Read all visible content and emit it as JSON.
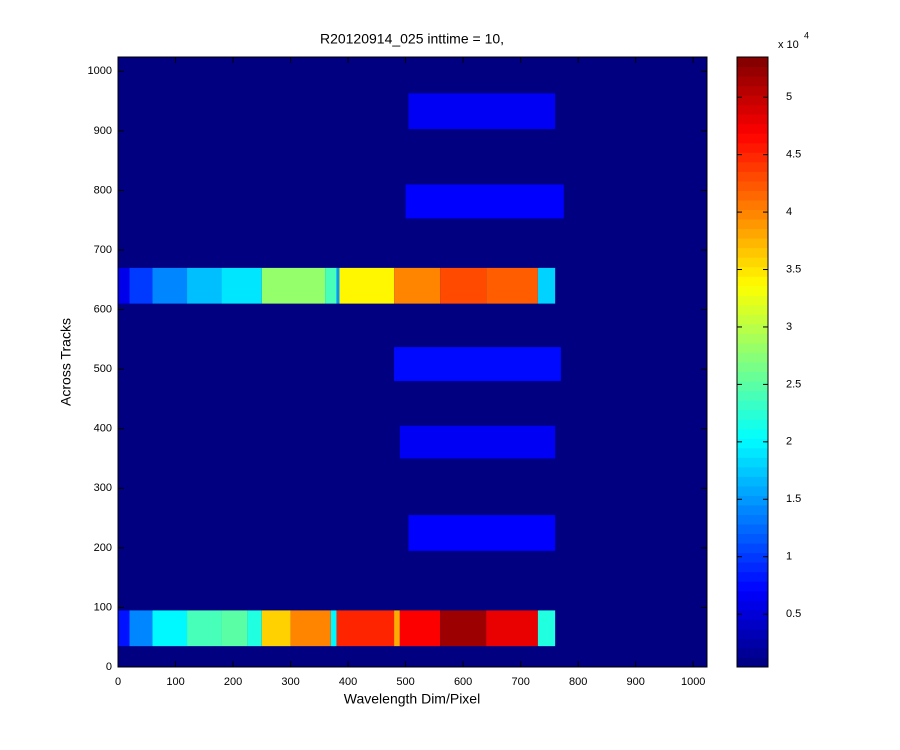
{
  "chart_data": {
    "type": "heatmap",
    "title": "R20120914_025 inttime = 10,",
    "x_label": "Wavelength Dim/Pixel",
    "y_label": "Across Tracks",
    "xlim": [
      0,
      1024
    ],
    "ylim": [
      0,
      1024
    ],
    "xticks": [
      0,
      100,
      200,
      300,
      400,
      500,
      600,
      700,
      800,
      900,
      1000
    ],
    "yticks": [
      0,
      100,
      200,
      300,
      400,
      500,
      600,
      700,
      800,
      900,
      1000
    ],
    "colormap": "jet",
    "clim": [
      400,
      53500
    ],
    "background_value": 500,
    "colorbar_ticks": [
      {
        "value": 5000,
        "label": "0.5"
      },
      {
        "value": 10000,
        "label": "1"
      },
      {
        "value": 15000,
        "label": "1.5"
      },
      {
        "value": 20000,
        "label": "2"
      },
      {
        "value": 25000,
        "label": "2.5"
      },
      {
        "value": 30000,
        "label": "3"
      },
      {
        "value": 35000,
        "label": "3.5"
      },
      {
        "value": 40000,
        "label": "4"
      },
      {
        "value": 45000,
        "label": "4.5"
      },
      {
        "value": 50000,
        "label": "5"
      }
    ],
    "colorbar_multiplier": {
      "base": "x 10",
      "exponent": "4"
    },
    "cells": [
      {
        "x": [
          0,
          20
        ],
        "y": [
          35,
          95
        ],
        "value": 8000
      },
      {
        "x": [
          20,
          60
        ],
        "y": [
          35,
          95
        ],
        "value": 14000
      },
      {
        "x": [
          60,
          120
        ],
        "y": [
          35,
          95
        ],
        "value": 20000
      },
      {
        "x": [
          120,
          180
        ],
        "y": [
          35,
          95
        ],
        "value": 24000
      },
      {
        "x": [
          180,
          225
        ],
        "y": [
          35,
          95
        ],
        "value": 25000
      },
      {
        "x": [
          225,
          250
        ],
        "y": [
          35,
          95
        ],
        "value": 22000
      },
      {
        "x": [
          250,
          300
        ],
        "y": [
          35,
          95
        ],
        "value": 36000
      },
      {
        "x": [
          300,
          370
        ],
        "y": [
          35,
          95
        ],
        "value": 40000
      },
      {
        "x": [
          370,
          380
        ],
        "y": [
          35,
          95
        ],
        "value": 20000
      },
      {
        "x": [
          380,
          480
        ],
        "y": [
          35,
          95
        ],
        "value": 45000
      },
      {
        "x": [
          480,
          490
        ],
        "y": [
          35,
          95
        ],
        "value": 38000
      },
      {
        "x": [
          490,
          560
        ],
        "y": [
          35,
          95
        ],
        "value": 47000
      },
      {
        "x": [
          560,
          640
        ],
        "y": [
          35,
          95
        ],
        "value": 52000
      },
      {
        "x": [
          640,
          730
        ],
        "y": [
          35,
          95
        ],
        "value": 48000
      },
      {
        "x": [
          730,
          760
        ],
        "y": [
          35,
          95
        ],
        "value": 22000
      },
      {
        "x": [
          0,
          20
        ],
        "y": [
          610,
          670
        ],
        "value": 6000
      },
      {
        "x": [
          20,
          60
        ],
        "y": [
          610,
          670
        ],
        "value": 10000
      },
      {
        "x": [
          60,
          120
        ],
        "y": [
          610,
          670
        ],
        "value": 14000
      },
      {
        "x": [
          120,
          180
        ],
        "y": [
          610,
          670
        ],
        "value": 17000
      },
      {
        "x": [
          180,
          250
        ],
        "y": [
          610,
          670
        ],
        "value": 19000
      },
      {
        "x": [
          250,
          360
        ],
        "y": [
          610,
          670
        ],
        "value": 28000
      },
      {
        "x": [
          360,
          380
        ],
        "y": [
          610,
          670
        ],
        "value": 24000
      },
      {
        "x": [
          380,
          385
        ],
        "y": [
          610,
          670
        ],
        "value": 15000
      },
      {
        "x": [
          385,
          480
        ],
        "y": [
          610,
          670
        ],
        "value": 34000
      },
      {
        "x": [
          480,
          560
        ],
        "y": [
          610,
          670
        ],
        "value": 40000
      },
      {
        "x": [
          560,
          640
        ],
        "y": [
          610,
          670
        ],
        "value": 43000
      },
      {
        "x": [
          640,
          730
        ],
        "y": [
          610,
          670
        ],
        "value": 42000
      },
      {
        "x": [
          730,
          760
        ],
        "y": [
          610,
          670
        ],
        "value": 18000
      },
      {
        "x": [
          505,
          760
        ],
        "y": [
          195,
          255
        ],
        "value": 7000
      },
      {
        "x": [
          490,
          760
        ],
        "y": [
          350,
          405
        ],
        "value": 6500
      },
      {
        "x": [
          480,
          770
        ],
        "y": [
          480,
          537
        ],
        "value": 7500
      },
      {
        "x": [
          500,
          775
        ],
        "y": [
          753,
          810
        ],
        "value": 7000
      },
      {
        "x": [
          505,
          760
        ],
        "y": [
          903,
          963
        ],
        "value": 6500
      }
    ]
  }
}
